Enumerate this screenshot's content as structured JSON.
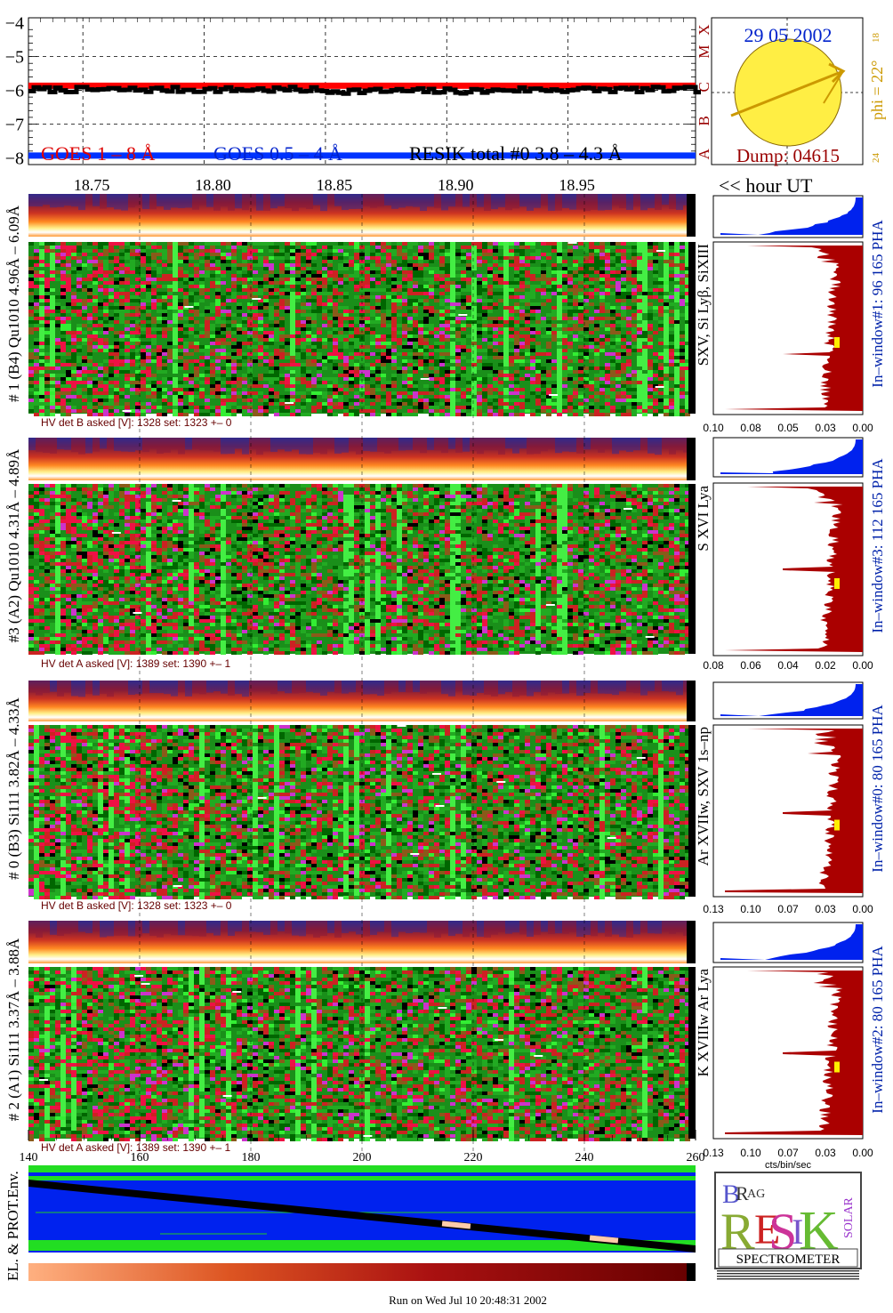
{
  "lightcurve": {
    "y_ticks": [
      "−4",
      "−5",
      "−6",
      "−7",
      "−8"
    ],
    "y_values": [
      -4,
      -5,
      -6,
      -7,
      -8
    ],
    "x_ticks": [
      "18.75",
      "18.80",
      "18.85",
      "18.90",
      "18.95"
    ],
    "x_values": [
      18.75,
      18.8,
      18.85,
      18.9,
      18.95
    ],
    "x_unit_label": "<< hour UT",
    "class_letters": [
      "X",
      "M",
      "C",
      "B",
      "A"
    ],
    "class_values": [
      -4,
      -5,
      -6,
      -7,
      -8
    ],
    "legend_goes_long": "GOES 1 – 8 Å",
    "legend_goes_short": "GOES 0.5 – 4 Å",
    "legend_resik": "RESIK total #0  3.8 – 4.3 Å",
    "colors": {
      "goes_long": "#ff0000",
      "goes_short": "#0033ff",
      "resik": "#000000"
    }
  },
  "sun_panel": {
    "date": "29 05 2002",
    "dump": "Dump: 04615",
    "phi_label": "phi = 22°",
    "tick_top": "18",
    "tick_bottom": "24"
  },
  "detectors": [
    {
      "side_label": "# 1 (B4) Qu1010 4.96Å – 6.09Å",
      "line_label": "SXV, Si Lyβ, SiXIII",
      "window_label": "In–window#1:   96 165  PHA",
      "hv_label": "HV det B asked [V]:  1328  set:  1323  +–    0",
      "pha_ticks": [
        "0.10",
        "0.08",
        "0.05",
        "0.03",
        "0.00"
      ]
    },
    {
      "side_label": "#3 (A2) Qu1010  4.31Å – 4.89Å",
      "line_label": "S XVI Lya",
      "window_label": "In–window#3:   112 165  PHA",
      "hv_label": "HV det A asked [V]:  1389  set:  1390  +–    1",
      "pha_ticks": [
        "0.08",
        "0.06",
        "0.04",
        "0.02",
        "0.00"
      ]
    },
    {
      "side_label": "# 0 (B3) Si111  3.82Å – 4.33Å",
      "line_label": "Ar XVIIw, SXV 1s–np",
      "window_label": "In–window#0:    80 165  PHA",
      "hv_label": "HV det B asked [V]:  1328  set:  1323  +–    0",
      "pha_ticks": [
        "0.13",
        "0.10",
        "0.07",
        "0.03",
        "0.00"
      ]
    },
    {
      "side_label": "# 2 (A1) Si111  3.37Å –  3.88Å",
      "line_label": "K XVIIIw  Ar Lya",
      "window_label": "In–window#2:    80 165  PHA",
      "hv_label": "HV det A asked [V]:  1389  set:  1390  +–    1",
      "pha_ticks": [
        "0.13",
        "0.10",
        "0.07",
        "0.03",
        "0.00"
      ]
    }
  ],
  "bottom_axis": {
    "ticks": [
      "140",
      "160",
      "180",
      "200",
      "220",
      "240",
      "260"
    ],
    "values": [
      140,
      160,
      180,
      200,
      220,
      240,
      260
    ],
    "pha_unit": "cts/bin/sec"
  },
  "env": {
    "label": "EL. & PROT.Env."
  },
  "logo": {
    "bragg_b": "B",
    "bragg_r": "R",
    "bragg_ag": "AG",
    "resik_r": "R",
    "resik_e": "E",
    "resik_s": "S",
    "resik_i": "I",
    "resik_k": "K",
    "solar": "SOLAR",
    "spectrometer": "SPECTROMETER"
  },
  "footer": "Run on Wed Jul 10 20:48:31 2002",
  "chart_data": {
    "type": "line",
    "x_name_printed": "<< hour UT",
    "xlim": [
      18.725,
      19.0
    ],
    "ylim": [
      -8.2,
      -3.85
    ],
    "grid": true,
    "legend": "bottom",
    "series": [
      {
        "name": "GOES 1 – 8 Å",
        "level": -5.85
      },
      {
        "name": "GOES 0.5 – 4 Å",
        "level": -7.92
      },
      {
        "name": "RESIK total #0  3.8 – 4.3 Å",
        "level": -6.0
      }
    ]
  }
}
